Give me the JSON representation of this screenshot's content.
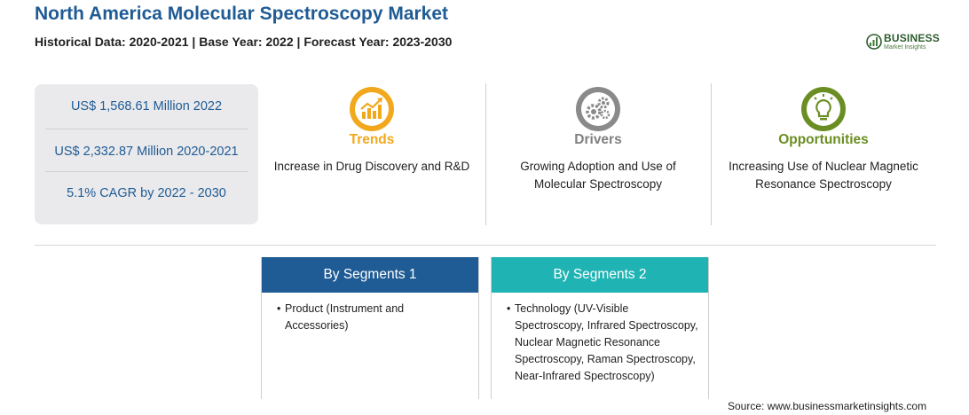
{
  "header": {
    "title": "North America Molecular Spectroscopy Market",
    "subtitle": "Historical Data: 2020-2021 | Base Year: 2022 | Forecast Year: 2023-2030"
  },
  "logo": {
    "name": "BUSINESS",
    "tagline": "Market Insights"
  },
  "stats": [
    {
      "text": "US$ 1,568.61 Million 2022"
    },
    {
      "text": "US$ 2,332.87 Million 2020-2021"
    },
    {
      "text": "5.1% CAGR by 2022 - 2030"
    }
  ],
  "columns": {
    "trends": {
      "heading": "Trends",
      "description": "Increase in Drug Discovery and R&D",
      "icon": "trend-chart-icon",
      "color": "#f2a81d"
    },
    "drivers": {
      "heading": "Drivers",
      "description": "Growing Adoption and Use of Molecular Spectroscopy",
      "icon": "gears-icon",
      "color": "#808080"
    },
    "opportunities": {
      "heading": "Opportunities",
      "description": "Increasing Use of Nuclear Magnetic Resonance Spectroscopy",
      "icon": "lightbulb-icon",
      "color": "#6b8e23"
    }
  },
  "segments": [
    {
      "title": "By Segments 1",
      "items": [
        "Product (Instrument and Accessories)"
      ],
      "color": "#1f5b94"
    },
    {
      "title": "By Segments 2",
      "items": [
        "Technology (UV-Visible Spectroscopy, Infrared Spectroscopy, Nuclear Magnetic Resonance Spectroscopy, Raman Spectroscopy, Near-Infrared Spectroscopy)"
      ],
      "color": "#20b3b3"
    }
  ],
  "source": "Source: www.businessmarketinsights.com"
}
